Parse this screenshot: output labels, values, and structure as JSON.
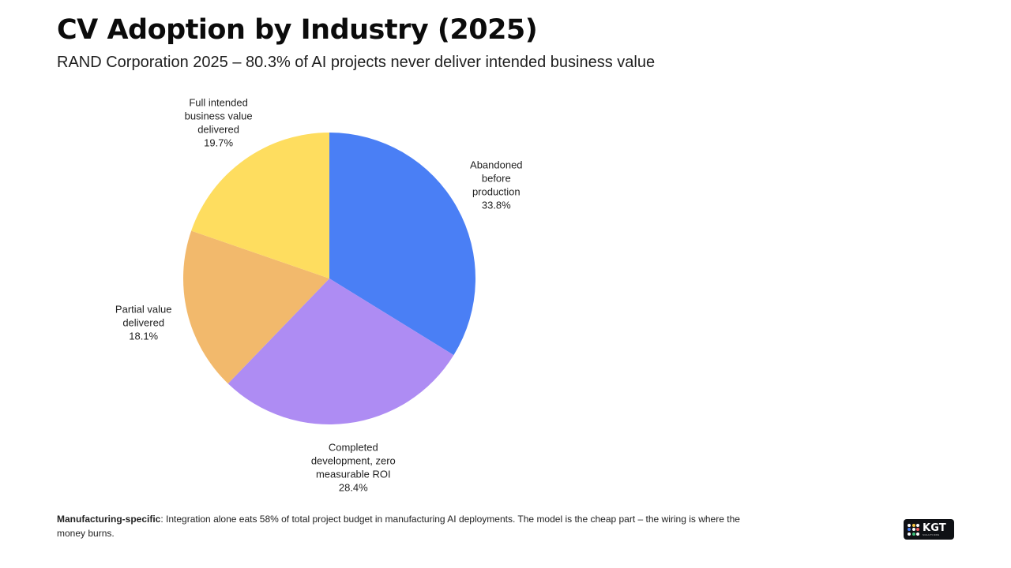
{
  "title": "CV Adoption by Industry (2025)",
  "subtitle": "RAND Corporation 2025 – 80.3% of AI projects never deliver intended business value",
  "chart_data": {
    "type": "pie",
    "start_angle_deg": 90,
    "direction": "clockwise",
    "slices": [
      {
        "label_lines": [
          "Abandoned",
          "before",
          "production"
        ],
        "value": 33.8,
        "value_label": "33.8%",
        "color": "#4a7ff5"
      },
      {
        "label_lines": [
          "Completed",
          "development, zero",
          "measurable ROI"
        ],
        "value": 28.4,
        "value_label": "28.4%",
        "color": "#ae8cf3"
      },
      {
        "label_lines": [
          "Partial value",
          "delivered"
        ],
        "value": 18.1,
        "value_label": "18.1%",
        "color": "#f2b96c"
      },
      {
        "label_lines": [
          "Full intended",
          "business value",
          "delivered"
        ],
        "value": 19.7,
        "value_label": "19.7%",
        "color": "#fedd5f"
      }
    ]
  },
  "footnote": {
    "bold": "Manufacturing-specific",
    "text": ": Integration alone eats 58% of total project budget in manufacturing AI deployments. The model is the cheap part – the wiring is where the money burns."
  },
  "logo": {
    "text": "KGT",
    "subtext": "SOLUTIONS",
    "dot_colors": [
      "#ffffff",
      "#f5c542",
      "#ffffff",
      "#4a7ff5",
      "#ffffff",
      "#ef5b5b",
      "#ffffff",
      "#3dbf7a",
      "#ffffff"
    ]
  }
}
